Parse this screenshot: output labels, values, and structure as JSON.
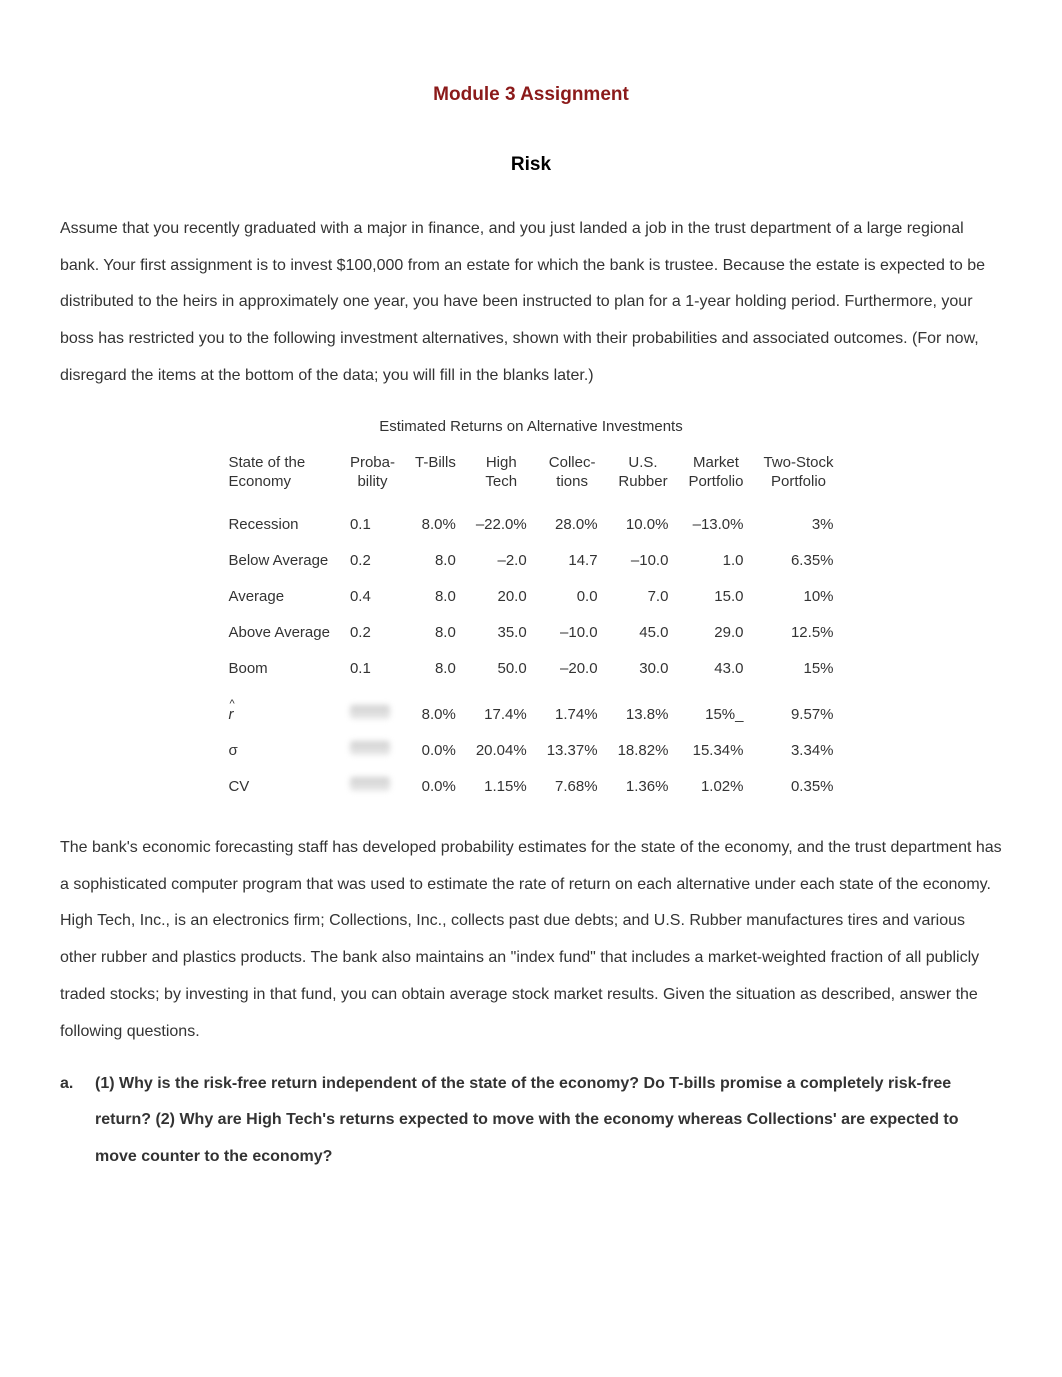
{
  "document": {
    "title": "Module 3 Assignment",
    "subtitle": "Risk",
    "intro_paragraph": "Assume that you recently graduated with a major in finance, and you just landed a job in the trust department of a large regional bank. Your first assignment is to invest $100,000 from an estate for which the bank is trustee. Because the estate is expected to be distributed to the heirs in approximately one year, you have been instructed to plan for a 1-year holding period. Furthermore, your boss has restricted you to the following investment alternatives, shown with their probabilities and associated outcomes. (For now, disregard the items at the bottom of the data; you will fill in the blanks later.)",
    "table_caption": "Estimated Returns on Alternative Investments",
    "body_paragraph": "The bank's economic forecasting staff has developed probability estimates for the state of the economy, and the trust department has a sophisticated computer program that was used to estimate the rate of return on each alternative under each state of the economy. High Tech, Inc., is an electronics firm; Collections, Inc., collects past due debts; and U.S. Rubber manufactures tires and various other rubber and plastics products. The bank also maintains an \"index fund\" that includes a market-weighted fraction of all publicly traded stocks; by investing in that fund, you can obtain average stock market results. Given the situation as described, answer the following questions.",
    "question_label": "a.",
    "question_text": "(1) Why is the risk-free return independent of the state of the economy? Do T-bills promise a completely risk-free return? (2) Why are High Tech's returns expected to move with the economy whereas Collections' are expected to move counter to the economy?"
  },
  "table": {
    "columns": [
      {
        "line1": "State of the",
        "line2": "Economy"
      },
      {
        "line1": "Proba-",
        "line2": "bility"
      },
      {
        "line1": "T-Bills",
        "line2": ""
      },
      {
        "line1": "High",
        "line2": "Tech"
      },
      {
        "line1": "Collec-",
        "line2": "tions"
      },
      {
        "line1": "U.S.",
        "line2": "Rubber"
      },
      {
        "line1": "Market",
        "line2": "Portfolio"
      },
      {
        "line1": "Two-Stock",
        "line2": "Portfolio"
      }
    ],
    "rows": [
      {
        "cells": [
          "Recession",
          "0.1",
          "8.0%",
          "–22.0%",
          "28.0%",
          "10.0%",
          "–13.0%",
          "3%"
        ]
      },
      {
        "cells": [
          "Below Average",
          "0.2",
          "8.0",
          "–2.0",
          "14.7",
          "–10.0",
          "1.0",
          "6.35%"
        ]
      },
      {
        "cells": [
          "Average",
          "0.4",
          "8.0",
          "20.0",
          "0.0",
          "7.0",
          "15.0",
          "10%"
        ]
      },
      {
        "cells": [
          "Above Average",
          "0.2",
          "8.0",
          "35.0",
          "–10.0",
          "45.0",
          "29.0",
          "12.5%"
        ]
      },
      {
        "cells": [
          "Boom",
          "0.1",
          "8.0",
          "50.0",
          "–20.0",
          "30.0",
          "43.0",
          "15%"
        ]
      }
    ],
    "summary_rows": [
      {
        "label": "r̂",
        "prob_blurred": true,
        "cells": [
          "8.0%",
          "17.4%",
          "1.74%",
          "13.8%",
          "15%_",
          "9.57%"
        ]
      },
      {
        "label": "σ",
        "prob_blurred": true,
        "cells": [
          "0.0%",
          "20.04%",
          "13.37%",
          "18.82%",
          "15.34%",
          "3.34%"
        ]
      },
      {
        "label": "CV",
        "prob_blurred": true,
        "cells": [
          "0.0%",
          "1.15%",
          "7.68%",
          "1.36%",
          "1.02%",
          "0.35%"
        ]
      }
    ],
    "styling": {
      "font_size_pt": 15,
      "text_color": "#333333",
      "background_color": "#ffffff",
      "cell_padding": "6px 10px",
      "blur_background": "#d8d8d8"
    }
  },
  "colors": {
    "title_color": "#8b1a1a",
    "body_text": "#333333",
    "background": "#ffffff"
  },
  "typography": {
    "font_family": "Arial, Helvetica, sans-serif",
    "title_size_pt": 19,
    "body_size_pt": 16,
    "line_height": 2.3
  }
}
